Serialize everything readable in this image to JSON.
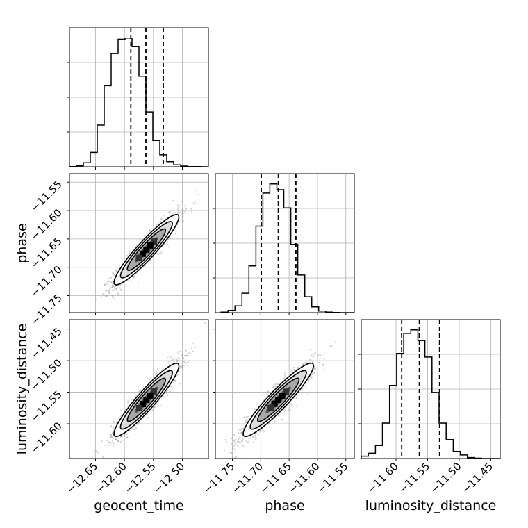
{
  "chart_data": {
    "type": "corner",
    "parameters": [
      "geocent_time",
      "phase",
      "luminosity_distance"
    ],
    "axis_labels": [
      "geocent_time",
      "phase",
      "luminosity_distance"
    ],
    "grid": true,
    "ranges": {
      "geocent_time": [
        -12.695,
        -12.455
      ],
      "phase": [
        -11.78,
        -11.535
      ],
      "luminosity_distance": [
        -11.655,
        -11.435
      ]
    },
    "ticks": {
      "geocent_time": [
        {
          "v": -12.65,
          "label": "−12.65"
        },
        {
          "v": -12.6,
          "label": "−12.60"
        },
        {
          "v": -12.55,
          "label": "−12.55"
        },
        {
          "v": -12.5,
          "label": "−12.50"
        }
      ],
      "phase": [
        {
          "v": -11.75,
          "label": "−11.75"
        },
        {
          "v": -11.7,
          "label": "−11.70"
        },
        {
          "v": -11.65,
          "label": "−11.65"
        },
        {
          "v": -11.6,
          "label": "−11.60"
        },
        {
          "v": -11.55,
          "label": "−11.55"
        }
      ],
      "luminosity_distance": [
        {
          "v": -11.6,
          "label": "−11.60"
        },
        {
          "v": -11.55,
          "label": "−11.55"
        },
        {
          "v": -11.5,
          "label": "−11.50"
        },
        {
          "v": -11.45,
          "label": "−11.45"
        }
      ]
    },
    "quantiles": {
      "geocent_time": [
        -12.589,
        -12.563,
        -12.533
      ],
      "phase": [
        -11.699,
        -11.669,
        -11.638
      ],
      "luminosity_distance": [
        -11.591,
        -11.563,
        -11.531
      ]
    },
    "histograms": {
      "geocent_time": {
        "edges": [
          -12.695,
          -12.683,
          -12.671,
          -12.659,
          -12.647,
          -12.635,
          -12.623,
          -12.611,
          -12.599,
          -12.587,
          -12.575,
          -12.563,
          -12.551,
          -12.539,
          -12.527,
          -12.515,
          -12.503,
          -12.491,
          -12.479,
          -12.467,
          -12.455
        ],
        "counts": [
          2,
          8,
          34,
          120,
          350,
          680,
          950,
          1070,
          1080,
          1010,
          760,
          460,
          220,
          100,
          42,
          16,
          6,
          2,
          1,
          0
        ]
      },
      "phase": {
        "edges": [
          -11.77,
          -11.7577,
          -11.7454,
          -11.7331,
          -11.7208,
          -11.7085,
          -11.6962,
          -11.6839,
          -11.6716,
          -11.6593,
          -11.647,
          -11.6347,
          -11.6224,
          -11.6101,
          -11.5978,
          -11.5855,
          -11.5732,
          -11.5609,
          -11.5486,
          -11.5363,
          -11.524
        ],
        "counts": [
          5,
          20,
          60,
          170,
          410,
          760,
          1050,
          1130,
          1080,
          920,
          600,
          330,
          140,
          50,
          14,
          4,
          1,
          0,
          0,
          0
        ]
      },
      "luminosity_distance": {
        "edges": [
          -11.655,
          -11.6438,
          -11.6326,
          -11.6214,
          -11.6102,
          -11.599,
          -11.5878,
          -11.5766,
          -11.5654,
          -11.5542,
          -11.543,
          -11.5318,
          -11.5206,
          -11.5094,
          -11.4982,
          -11.487,
          -11.4758,
          -11.4646,
          -11.4534,
          -11.4422,
          -11.431
        ],
        "counts": [
          20,
          45,
          110,
          300,
          620,
          890,
          1060,
          1090,
          1000,
          860,
          560,
          300,
          160,
          60,
          30,
          8,
          3,
          0,
          0,
          0
        ]
      }
    },
    "pairs": [
      {
        "x": "geocent_time",
        "y": "phase",
        "mean": [
          -12.562,
          -11.669
        ],
        "std": [
          0.028,
          0.031
        ],
        "corr": 0.93
      },
      {
        "x": "geocent_time",
        "y": "luminosity_distance",
        "mean": [
          -12.562,
          -11.562
        ],
        "std": [
          0.028,
          0.029
        ],
        "corr": 0.93
      },
      {
        "x": "phase",
        "y": "luminosity_distance",
        "mean": [
          -11.669,
          -11.562
        ],
        "std": [
          0.031,
          0.029
        ],
        "corr": 0.93
      }
    ]
  }
}
